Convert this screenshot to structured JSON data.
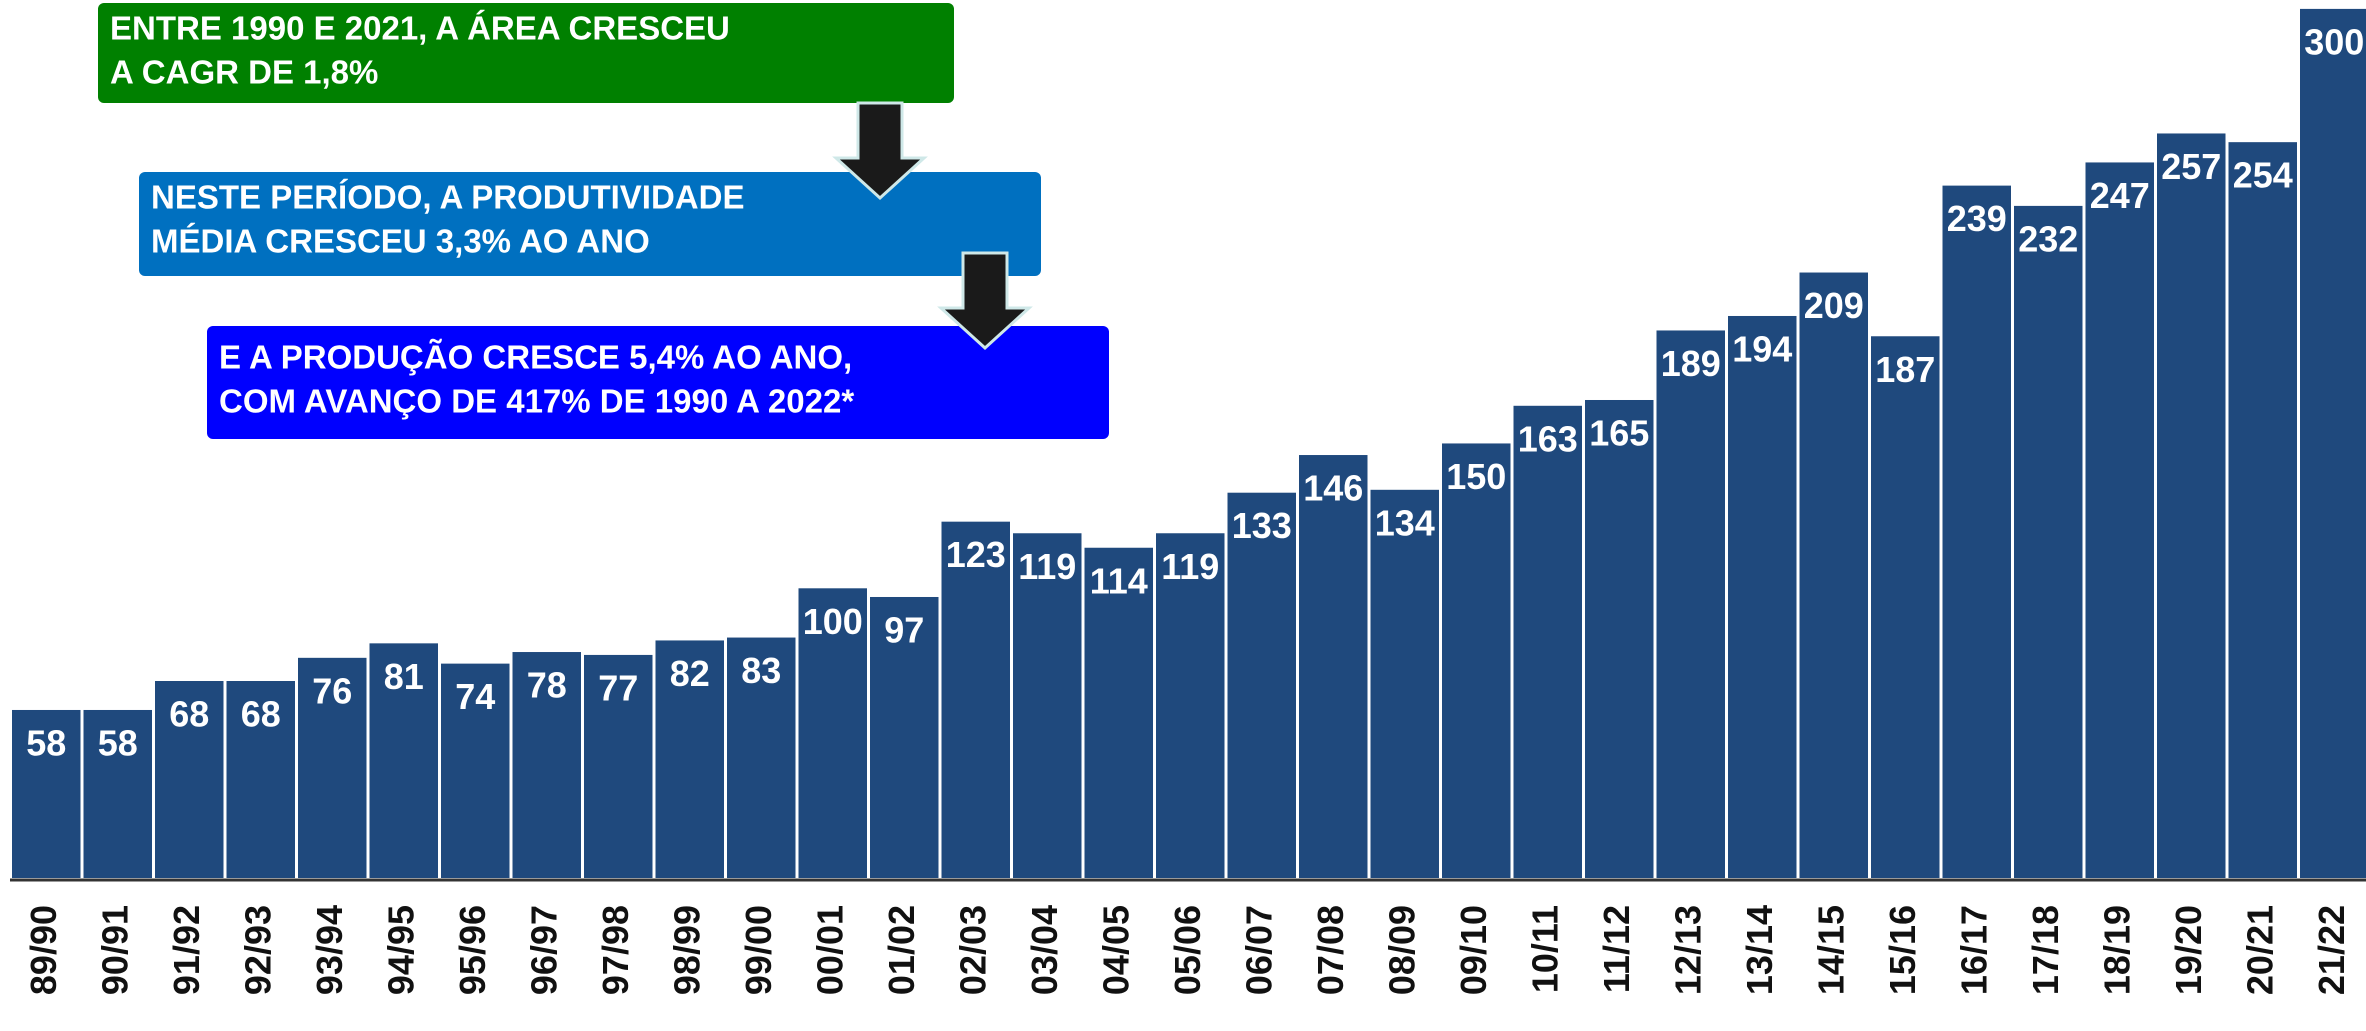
{
  "chart_data": {
    "type": "bar",
    "categories": [
      "89/90",
      "90/91",
      "91/92",
      "92/93",
      "93/94",
      "94/95",
      "95/96",
      "96/97",
      "97/98",
      "98/99",
      "99/00",
      "00/01",
      "01/02",
      "02/03",
      "03/04",
      "04/05",
      "05/06",
      "06/07",
      "07/08",
      "08/09",
      "09/10",
      "10/11",
      "11/12",
      "12/13",
      "13/14",
      "14/15",
      "15/16",
      "16/17",
      "17/18",
      "18/19",
      "19/20",
      "20/21",
      "21/22"
    ],
    "values": [
      58,
      58,
      68,
      68,
      76,
      81,
      74,
      78,
      77,
      82,
      83,
      100,
      97,
      123,
      119,
      114,
      119,
      133,
      146,
      134,
      150,
      163,
      165,
      189,
      194,
      209,
      187,
      239,
      232,
      247,
      257,
      254,
      300
    ],
    "color": "#1f497d",
    "annotations": [
      {
        "lines": [
          "ENTRE 1990 E 2021, A ÁREA CRESCEU",
          "A CAGR DE 1,8%"
        ],
        "color": "#008000"
      },
      {
        "lines": [
          "NESTE PERÍODO, A PRODUTIVIDADE",
          "MÉDIA CRESCEU 3,3% AO ANO"
        ],
        "color": "#0070c0"
      },
      {
        "lines": [
          "E A PRODUÇÃO CRESCE 5,4% AO ANO,",
          "COM AVANÇO DE 417% DE 1990 A 2022*"
        ],
        "color": "#0000ff"
      }
    ]
  }
}
